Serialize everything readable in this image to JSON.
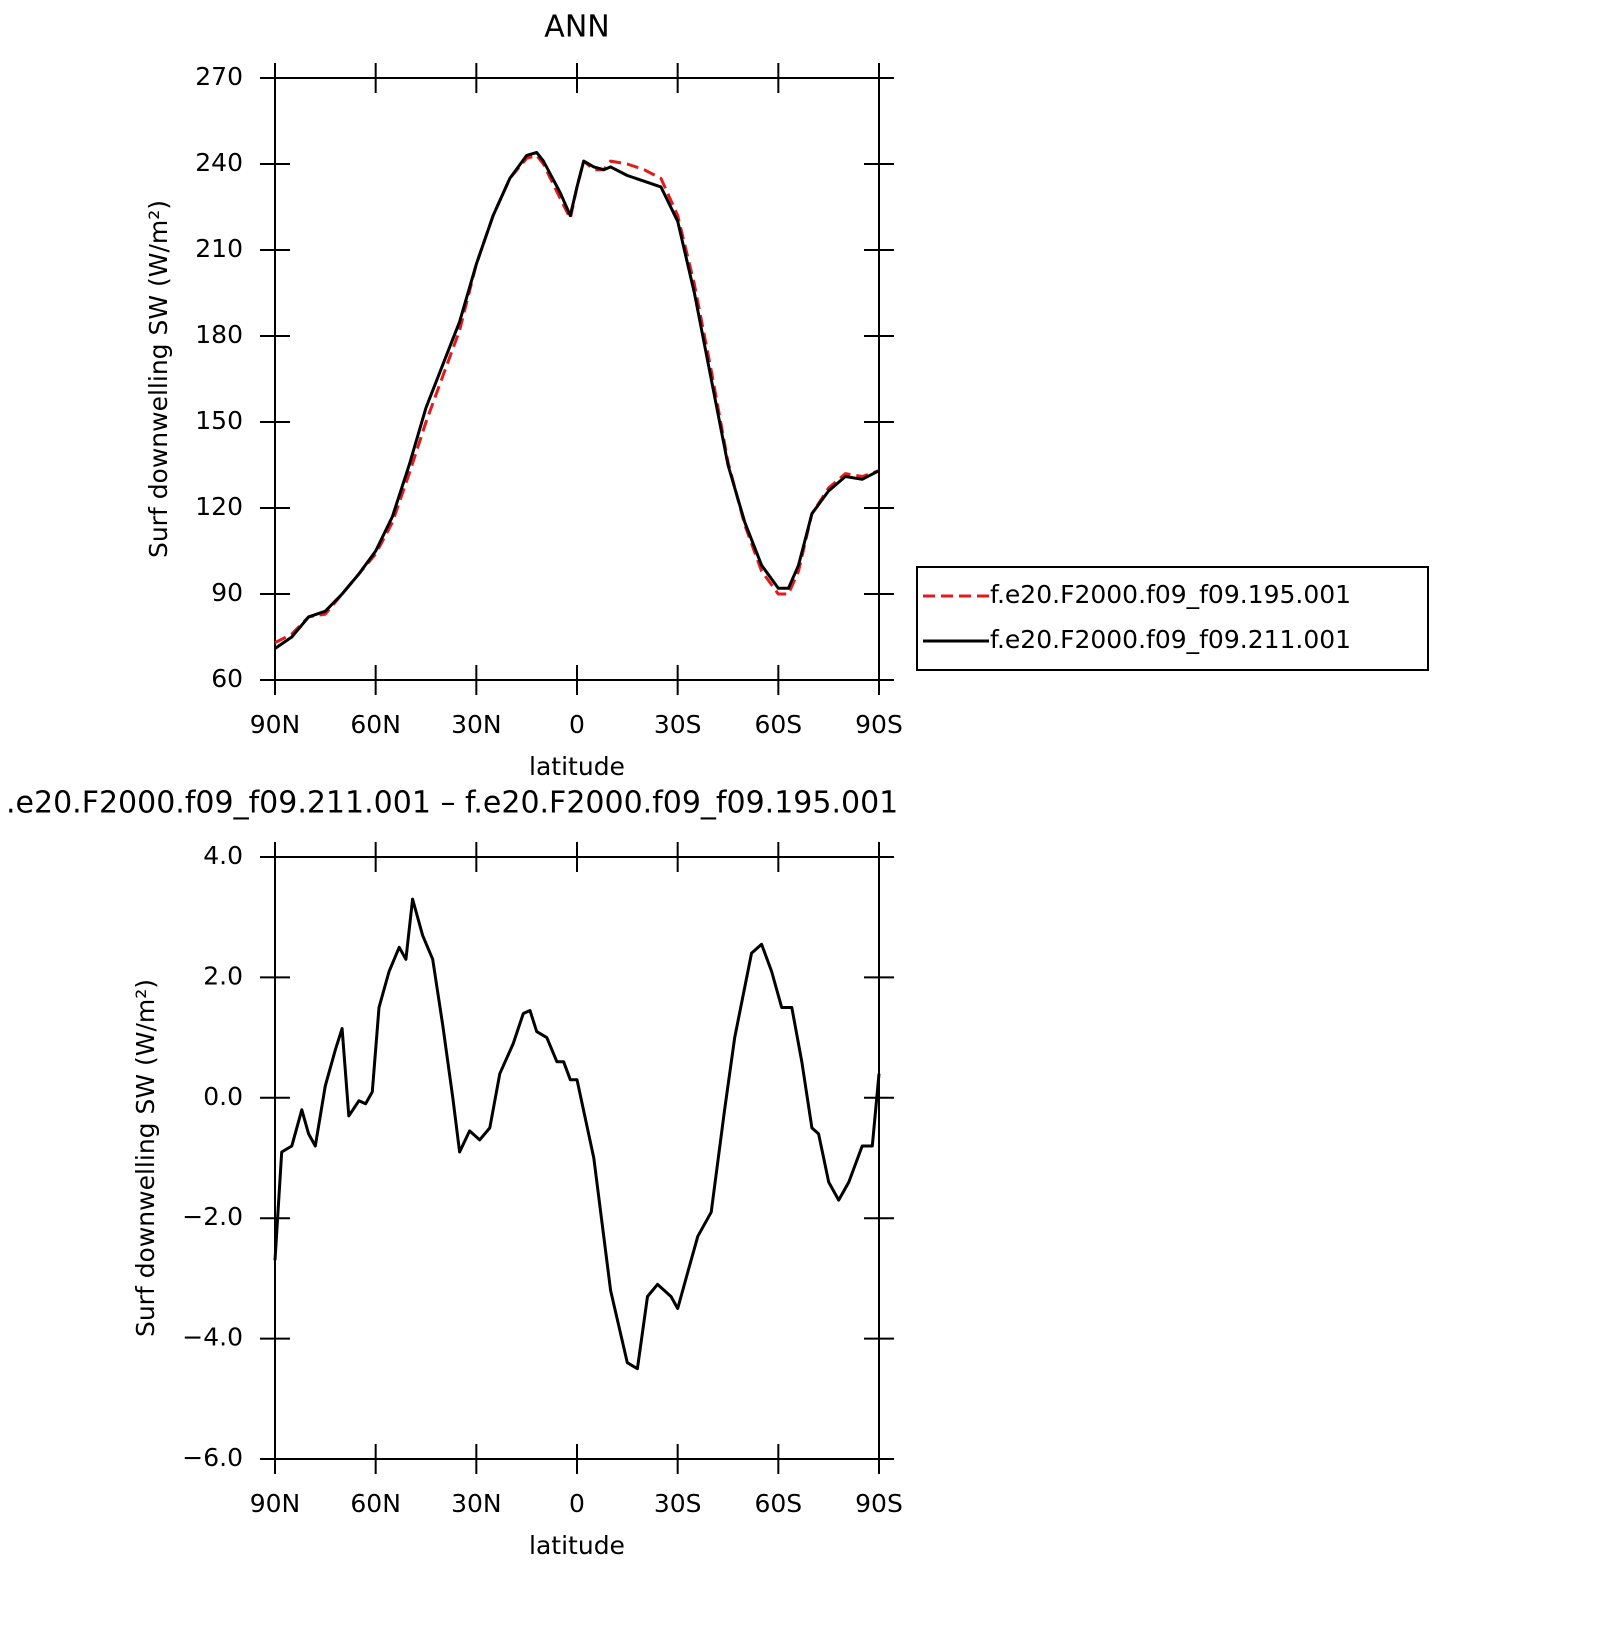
{
  "chart_data": [
    {
      "type": "line",
      "title": "ANN",
      "xlabel": "latitude",
      "ylabel": "Surf downwelling SW (W/m²)",
      "x": [
        90,
        85,
        80,
        75,
        70,
        65,
        60,
        55,
        50,
        45,
        40,
        35,
        30,
        25,
        20,
        15,
        12,
        10,
        5,
        2,
        0,
        -2,
        -5,
        -8,
        -10,
        -15,
        -20,
        -25,
        -30,
        -35,
        -40,
        -45,
        -50,
        -55,
        -60,
        -63,
        -66,
        -70,
        -75,
        -80,
        -85,
        -90
      ],
      "series": [
        {
          "name": "f.e20.F2000.f09_f09.195.001",
          "color": "#e41a1c",
          "dash": true,
          "values": [
            73,
            76,
            82,
            83,
            90,
            97,
            104,
            115,
            132,
            150,
            166,
            182,
            205,
            222,
            235,
            242,
            243,
            240,
            228,
            221,
            232,
            241,
            238,
            238,
            241,
            240,
            238,
            235,
            222,
            198,
            168,
            136,
            114,
            98,
            90,
            90,
            98,
            118,
            127,
            132,
            131,
            133
          ]
        },
        {
          "name": "f.e20.F2000.f09_f09.211.001",
          "color": "#000000",
          "dash": false,
          "values": [
            71,
            75,
            82,
            84,
            90,
            97,
            105,
            117,
            135,
            155,
            170,
            185,
            205,
            222,
            235,
            243,
            244,
            241,
            230,
            222,
            232,
            241,
            239,
            238,
            239,
            236,
            234,
            232,
            220,
            195,
            165,
            135,
            115,
            100,
            92,
            92,
            100,
            118,
            126,
            131,
            130,
            133
          ]
        }
      ],
      "xlim": [
        90,
        -90
      ],
      "xticks": [
        {
          "value": 90,
          "label": "90N"
        },
        {
          "value": 60,
          "label": "60N"
        },
        {
          "value": 30,
          "label": "30N"
        },
        0,
        {
          "value": -30,
          "label": "30S"
        },
        {
          "value": -60,
          "label": "60S"
        },
        {
          "value": -90,
          "label": "90S"
        }
      ],
      "ylim": [
        60,
        270
      ],
      "yticks": [
        60,
        90,
        120,
        150,
        180,
        210,
        240,
        270
      ],
      "legend": "right"
    },
    {
      "type": "line",
      "title": ".e20.F2000.f09_f09.211.001 – f.e20.F2000.f09_f09.195.001",
      "xlabel": "latitude",
      "ylabel": "Surf downwelling SW (W/m²)",
      "x": [
        90,
        88,
        85,
        82,
        80,
        78,
        75,
        72,
        70,
        68,
        65,
        63,
        61,
        59,
        56,
        53,
        51,
        49,
        46,
        43,
        40,
        37,
        35,
        32,
        29,
        26,
        23,
        19,
        16,
        14,
        12,
        9,
        6,
        4,
        2,
        0,
        -5,
        -10,
        -15,
        -18,
        -21,
        -24,
        -28,
        -30,
        -33,
        -36,
        -40,
        -44,
        -47,
        -52,
        -55,
        -58,
        -61,
        -64,
        -67,
        -70,
        -72,
        -75,
        -78,
        -81,
        -85,
        -88,
        -90
      ],
      "series": [
        {
          "color": "#000000",
          "dash": false,
          "values": [
            -2.7,
            -0.9,
            -0.8,
            -0.2,
            -0.6,
            -0.8,
            0.2,
            0.8,
            1.15,
            -0.3,
            -0.05,
            -0.1,
            0.1,
            1.5,
            2.1,
            2.5,
            2.3,
            3.3,
            2.7,
            2.3,
            1.2,
            0.0,
            -0.9,
            -0.55,
            -0.7,
            -0.5,
            0.4,
            0.9,
            1.4,
            1.45,
            1.1,
            1.0,
            0.6,
            0.6,
            0.3,
            0.3,
            -1.0,
            -3.2,
            -4.4,
            -4.5,
            -3.3,
            -3.1,
            -3.3,
            -3.5,
            -2.9,
            -2.3,
            -1.9,
            -0.2,
            1.0,
            2.4,
            2.55,
            2.1,
            1.5,
            1.5,
            0.6,
            -0.5,
            -0.6,
            -1.4,
            -1.7,
            -1.4,
            -0.8,
            -0.8,
            0.4
          ]
        }
      ],
      "xlim": [
        90,
        -90
      ],
      "xticks": [
        {
          "value": 90,
          "label": "90N"
        },
        {
          "value": 60,
          "label": "60N"
        },
        {
          "value": 30,
          "label": "30N"
        },
        0,
        {
          "value": -30,
          "label": "30S"
        },
        {
          "value": -60,
          "label": "60S"
        },
        {
          "value": -90,
          "label": "90S"
        }
      ],
      "ylim": [
        -6,
        4
      ],
      "yticks": [
        {
          "value": -6,
          "label": "−6.0"
        },
        {
          "value": -4,
          "label": "−4.0"
        },
        {
          "value": -2,
          "label": "−2.0"
        },
        {
          "value": 0,
          "label": "0.0"
        },
        {
          "value": 2,
          "label": "2.0"
        },
        {
          "value": 4,
          "label": "4.0"
        }
      ]
    }
  ]
}
